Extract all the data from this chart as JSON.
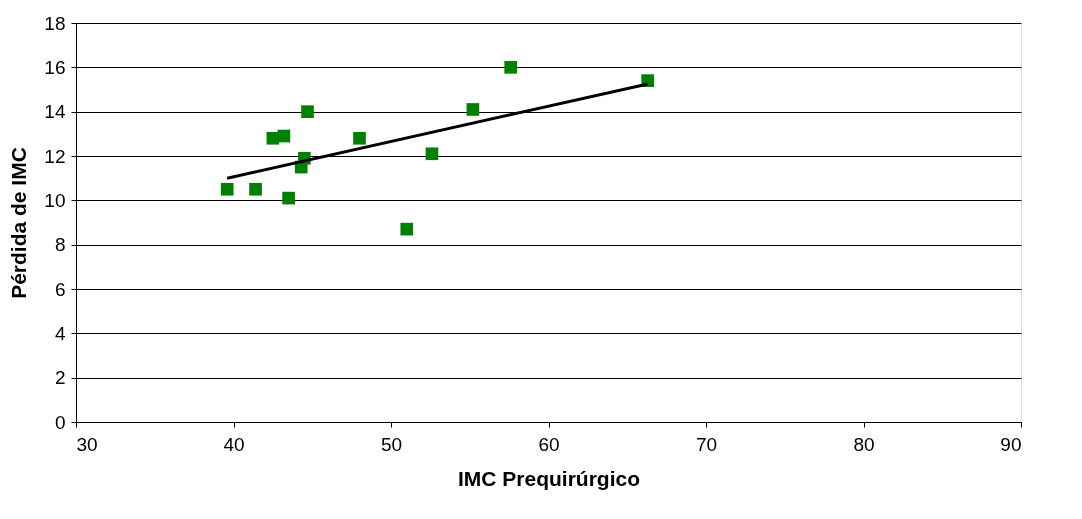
{
  "chart_data": {
    "type": "scatter",
    "xlabel": "IMC Prequirúrgico",
    "ylabel": "Pérdida de IMC",
    "xlim": [
      30,
      90
    ],
    "xticks": [
      30,
      40,
      50,
      60,
      70,
      80,
      90
    ],
    "ylim": [
      0,
      18
    ],
    "yticks": [
      0,
      2,
      4,
      6,
      8,
      10,
      12,
      14,
      16,
      18
    ],
    "grid": "y",
    "series": [
      {
        "type": "scatter",
        "marker": "square",
        "color": "#008000",
        "x": [
          39.6,
          41.4,
          42.5,
          43.2,
          43.5,
          44.3,
          44.5,
          44.7,
          48.0,
          51.0,
          52.6,
          55.2,
          57.6,
          66.3
        ],
        "values": [
          10.5,
          10.5,
          12.8,
          12.9,
          10.1,
          11.5,
          11.9,
          14.0,
          12.8,
          8.7,
          12.1,
          14.1,
          16.0,
          15.4
        ]
      },
      {
        "type": "line",
        "marker": "none",
        "color": "#000000",
        "x": [
          39.6,
          66.3
        ],
        "values": [
          11.0,
          15.25
        ]
      }
    ]
  }
}
